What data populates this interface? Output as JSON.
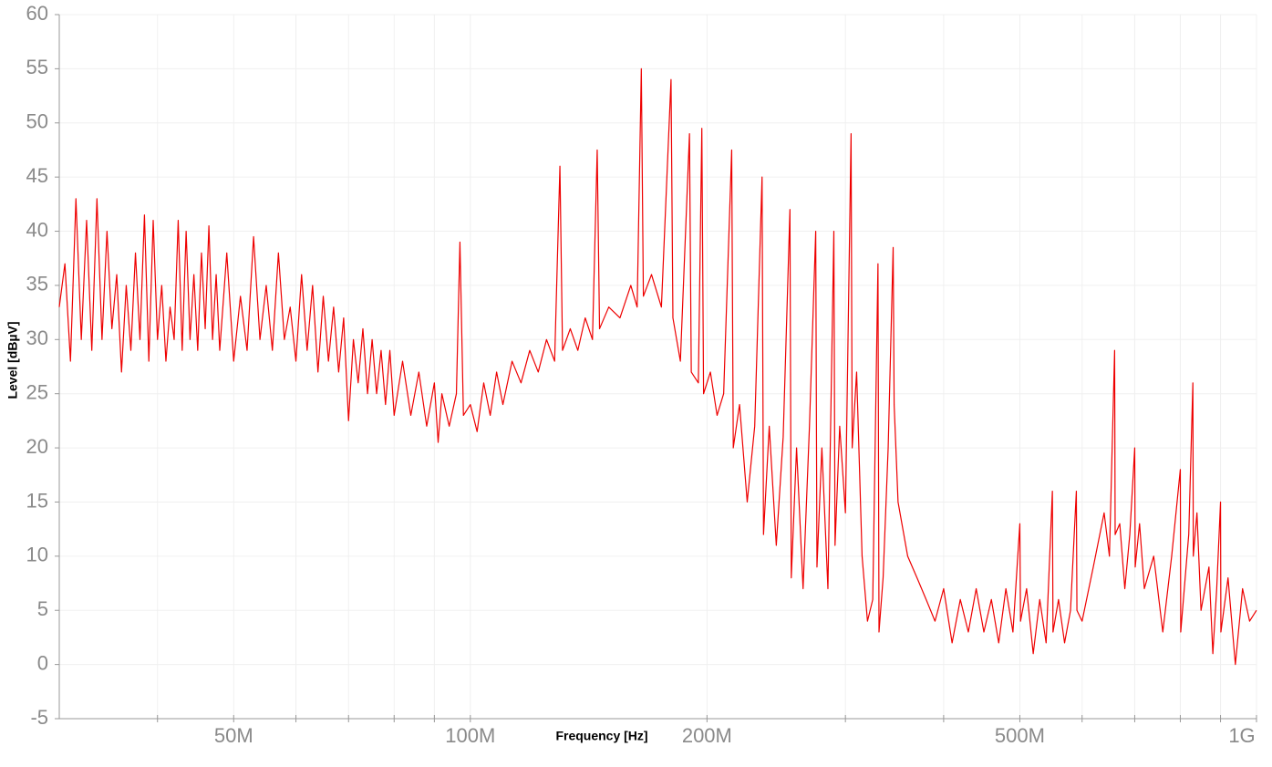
{
  "chart_data": {
    "type": "line",
    "y_label": "Level [dBµV]",
    "x_label": "Frequency [Hz]",
    "x_log": true,
    "grid": true,
    "xlim": [
      30000000.0,
      1000000000.0
    ],
    "ylim": [
      -5,
      60
    ],
    "yticks": [
      -5,
      0,
      5,
      10,
      15,
      20,
      25,
      30,
      35,
      40,
      45,
      50,
      55,
      60
    ],
    "xticks": [
      {
        "value": 50000000.0,
        "label": "50M"
      },
      {
        "value": 100000000.0,
        "label": "100M"
      },
      {
        "value": 200000000.0,
        "label": "200M"
      },
      {
        "value": 500000000.0,
        "label": "500M"
      },
      {
        "value": 1000000000.0,
        "label": "1G"
      }
    ],
    "xminorticks": [
      40000000.0,
      60000000.0,
      70000000.0,
      80000000.0,
      90000000.0,
      300000000.0,
      400000000.0,
      600000000.0,
      700000000.0,
      800000000.0,
      900000000.0
    ],
    "x": [
      30000000.0,
      30500000.0,
      31000000.0,
      31500000.0,
      32000000.0,
      32500000.0,
      33000000.0,
      33500000.0,
      34000000.0,
      34500000.0,
      35000000.0,
      35500000.0,
      36000000.0,
      36500000.0,
      37000000.0,
      37500000.0,
      38000000.0,
      38500000.0,
      39000000.0,
      39500000.0,
      40000000.0,
      40500000.0,
      41000000.0,
      41500000.0,
      42000000.0,
      42500000.0,
      43000000.0,
      43500000.0,
      44000000.0,
      44500000.0,
      45000000.0,
      45500000.0,
      46000000.0,
      46500000.0,
      47000000.0,
      47500000.0,
      48000000.0,
      49000000.0,
      50000000.0,
      51000000.0,
      52000000.0,
      53000000.0,
      54000000.0,
      55000000.0,
      56000000.0,
      57000000.0,
      58000000.0,
      59000000.0,
      60000000.0,
      61000000.0,
      62000000.0,
      63000000.0,
      64000000.0,
      65000000.0,
      66000000.0,
      67000000.0,
      68000000.0,
      69000000.0,
      70000000.0,
      71000000.0,
      72000000.0,
      73000000.0,
      74000000.0,
      75000000.0,
      76000000.0,
      77000000.0,
      78000000.0,
      79000000.0,
      80000000.0,
      82000000.0,
      84000000.0,
      86000000.0,
      88000000.0,
      90000000.0,
      91000000.0,
      92000000.0,
      94000000.0,
      96000000.0,
      97000000.0,
      98000000.0,
      100000000.0,
      102000000.0,
      104000000.0,
      106000000.0,
      108000000.0,
      110000000.0,
      113000000.0,
      116000000.0,
      119000000.0,
      122000000.0,
      125000000.0,
      128000000.0,
      130000000.0,
      131000000.0,
      134000000.0,
      137000000.0,
      140000000.0,
      143000000.0,
      145000000.0,
      146000000.0,
      150000000.0,
      155000000.0,
      160000000.0,
      163000000.0,
      165000000.0,
      166000000.0,
      170000000.0,
      175000000.0,
      180000000.0,
      181000000.0,
      185000000.0,
      190000000.0,
      191000000.0,
      195000000.0,
      197000000.0,
      198000000.0,
      202000000.0,
      206000000.0,
      210000000.0,
      215000000.0,
      216000000.0,
      220000000.0,
      225000000.0,
      230000000.0,
      235000000.0,
      236000000.0,
      240000000.0,
      245000000.0,
      250000000.0,
      255000000.0,
      256000000.0,
      260000000.0,
      265000000.0,
      270000000.0,
      275000000.0,
      276000000.0,
      280000000.0,
      285000000.0,
      290000000.0,
      291000000.0,
      295000000.0,
      300000000.0,
      305000000.0,
      306000000.0,
      310000000.0,
      315000000.0,
      320000000.0,
      325000000.0,
      330000000.0,
      331000000.0,
      335000000.0,
      340000000.0,
      345000000.0,
      346000000.0,
      350000000.0,
      360000000.0,
      370000000.0,
      380000000.0,
      390000000.0,
      400000000.0,
      410000000.0,
      420000000.0,
      430000000.0,
      440000000.0,
      450000000.0,
      460000000.0,
      470000000.0,
      480000000.0,
      490000000.0,
      500000000.0,
      501000000.0,
      510000000.0,
      520000000.0,
      530000000.0,
      540000000.0,
      550000000.0,
      551000000.0,
      560000000.0,
      570000000.0,
      580000000.0,
      590000000.0,
      591000000.0,
      600000000.0,
      620000000.0,
      640000000.0,
      650000000.0,
      660000000.0,
      661000000.0,
      670000000.0,
      680000000.0,
      690000000.0,
      700000000.0,
      701000000.0,
      710000000.0,
      720000000.0,
      740000000.0,
      760000000.0,
      780000000.0,
      800000000.0,
      801000000.0,
      820000000.0,
      830000000.0,
      831000000.0,
      840000000.0,
      850000000.0,
      870000000.0,
      880000000.0,
      890000000.0,
      900000000.0,
      901000000.0,
      920000000.0,
      940000000.0,
      960000000.0,
      980000000.0,
      1000000000.0
    ],
    "series": [
      {
        "color": "#ee0000",
        "values": [
          33,
          37,
          28,
          43,
          30,
          41,
          29,
          43,
          30,
          40,
          31,
          36,
          27,
          35,
          29,
          38,
          30,
          41.5,
          28,
          41,
          30,
          35,
          28,
          33,
          30,
          41,
          29,
          40,
          30,
          36,
          29,
          38,
          31,
          40.5,
          30,
          36,
          29,
          38,
          28,
          34,
          29,
          39.5,
          30,
          35,
          29,
          38,
          30,
          33,
          28,
          36,
          29,
          35,
          27,
          34,
          28,
          33,
          27,
          32,
          22.5,
          30,
          26,
          31,
          25,
          30,
          25,
          29,
          24,
          29,
          23,
          28,
          23,
          27,
          22,
          26,
          20.5,
          25,
          22,
          25,
          39,
          23,
          24,
          21.5,
          26,
          23,
          27,
          24,
          28,
          26,
          29,
          27,
          30,
          28,
          46,
          29,
          31,
          29,
          32,
          30,
          47.5,
          31,
          33,
          32,
          35,
          33,
          55,
          34,
          36,
          33,
          54,
          32,
          28,
          49,
          27,
          26,
          49.5,
          25,
          27,
          23,
          25,
          47.5,
          20,
          24,
          15,
          22,
          45,
          12,
          22,
          11,
          21,
          42,
          8,
          20,
          7,
          22,
          40,
          9,
          20,
          7,
          40,
          11,
          22,
          14,
          49,
          20,
          27,
          10,
          4,
          6,
          37,
          3,
          8,
          20,
          38.5,
          24,
          15,
          10,
          8,
          6,
          4,
          7,
          2,
          6,
          3,
          7,
          3,
          6,
          2,
          7,
          3,
          13,
          4,
          7,
          1,
          6,
          2,
          16,
          3,
          6,
          2,
          5,
          16,
          5,
          4,
          9,
          14,
          10,
          29,
          12,
          13,
          7,
          12,
          20,
          9,
          13,
          7,
          10,
          3,
          10,
          18,
          3,
          12,
          26,
          10,
          14,
          5,
          9,
          1,
          7,
          15,
          3,
          8,
          0,
          7,
          4,
          5
        ]
      }
    ]
  }
}
